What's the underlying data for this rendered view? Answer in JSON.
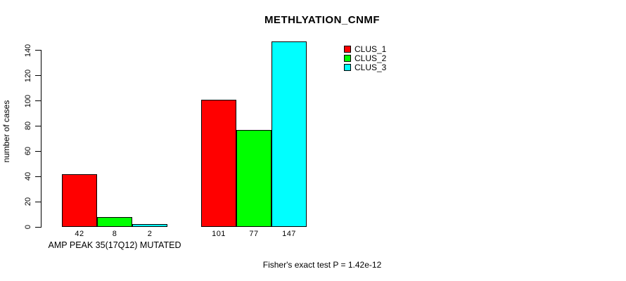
{
  "chart_data": {
    "type": "bar",
    "title": "METHLYATION_CNMF",
    "xlabel": "",
    "ylabel": "number of cases",
    "ylim": [
      0,
      150
    ],
    "yticks": [
      0,
      20,
      40,
      60,
      80,
      100,
      120,
      140
    ],
    "grid": false,
    "bar_value_labels": true,
    "categories": [
      "AMP PEAK 35(17Q12) MUTATED",
      ""
    ],
    "series": [
      {
        "name": "CLUS_1",
        "color": "#ff0000",
        "values": [
          42,
          101
        ]
      },
      {
        "name": "CLUS_2",
        "color": "#00ff00",
        "values": [
          8,
          77
        ]
      },
      {
        "name": "CLUS_3",
        "color": "#00ffff",
        "values": [
          2,
          147
        ]
      }
    ],
    "legend": {
      "position": "top-right",
      "entries": [
        {
          "label": "CLUS_1",
          "color": "#ff0000"
        },
        {
          "label": "CLUS_2",
          "color": "#00ff00"
        },
        {
          "label": "CLUS_3",
          "color": "#00ffff"
        }
      ]
    },
    "annotation": "Fisher's exact test P = 1.42e-12"
  }
}
